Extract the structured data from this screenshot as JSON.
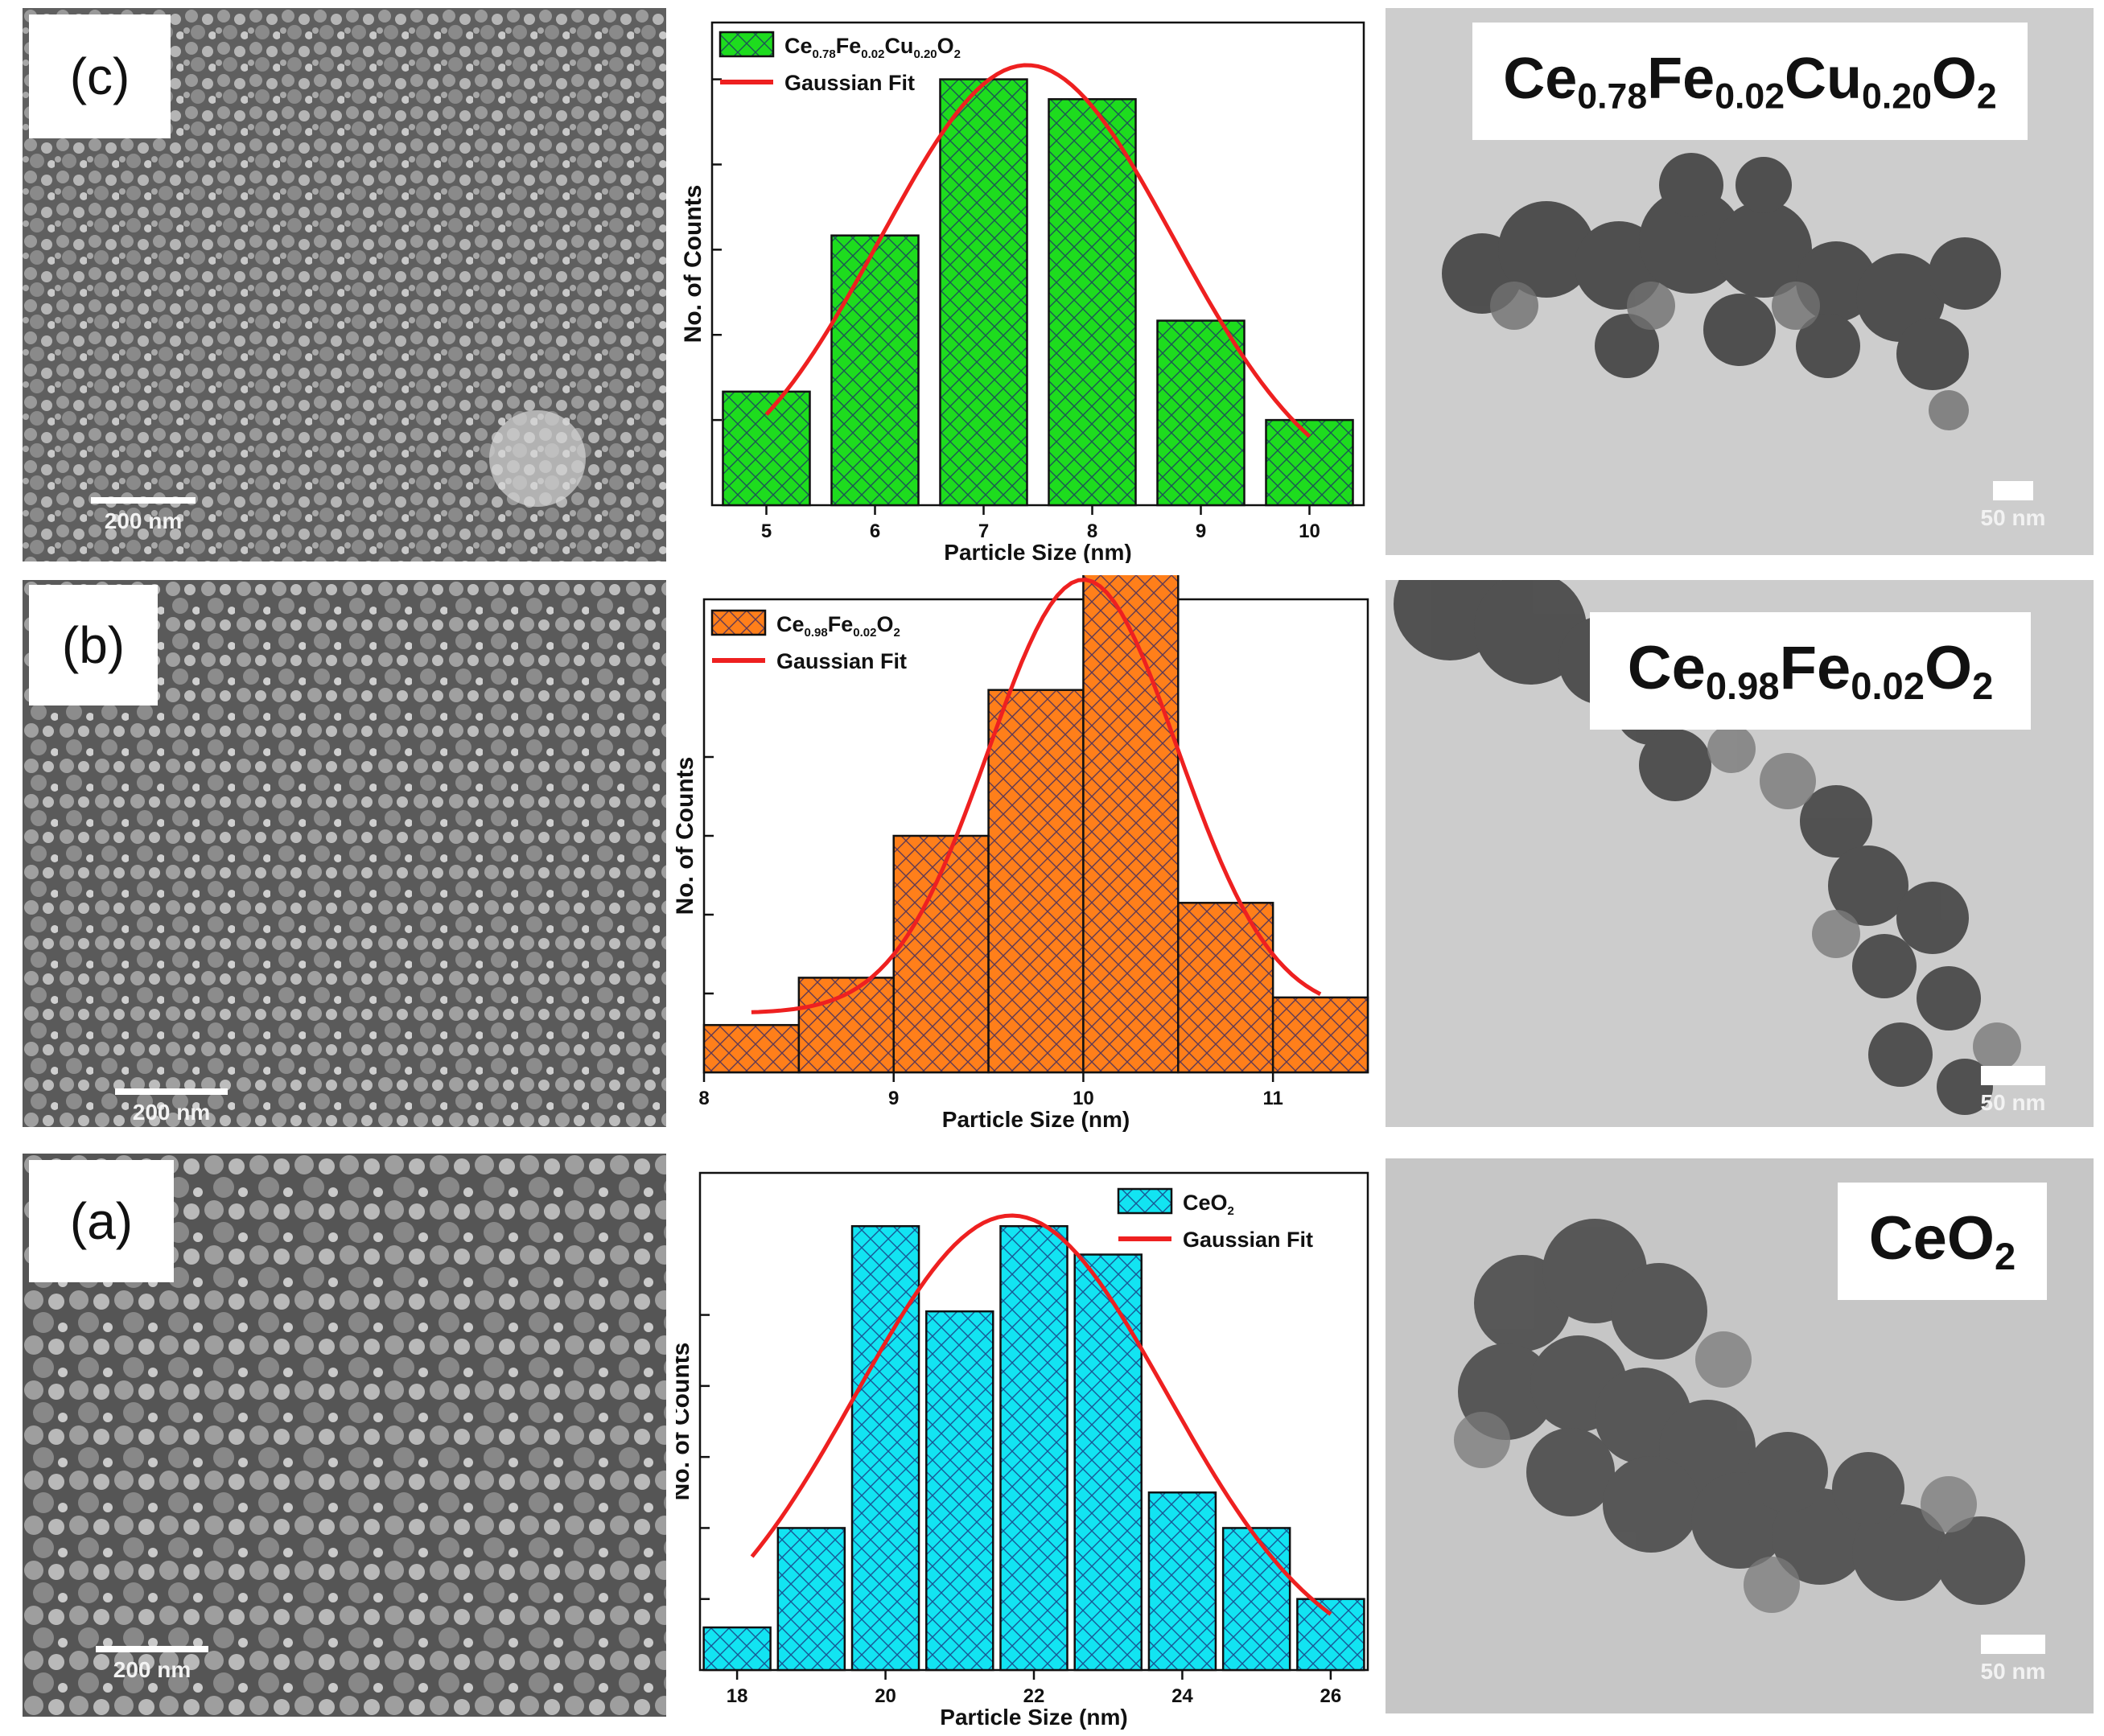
{
  "rows": [
    {
      "panel_label": "(c)",
      "sem_scale": "200 nm",
      "tem_scale": "50 nm",
      "tem_formula": {
        "parts": [
          [
            "Ce",
            ""
          ],
          [
            "0.78",
            "sub"
          ],
          [
            "Fe",
            ""
          ],
          [
            "0.02",
            "sub"
          ],
          [
            "Cu",
            ""
          ],
          [
            "0.20",
            "sub"
          ],
          [
            "O",
            ""
          ],
          [
            "2",
            "sub"
          ]
        ]
      }
    },
    {
      "panel_label": "(b)",
      "sem_scale": "200 nm",
      "tem_scale": "50 nm",
      "tem_formula": {
        "parts": [
          [
            "Ce",
            ""
          ],
          [
            "0.98",
            "sub"
          ],
          [
            "Fe",
            ""
          ],
          [
            "0.02",
            "sub"
          ],
          [
            "O",
            ""
          ],
          [
            "2",
            "sub"
          ]
        ]
      }
    },
    {
      "panel_label": "(a)",
      "sem_scale": "200 nm",
      "tem_scale": "50 nm",
      "tem_formula": {
        "parts": [
          [
            "Ce",
            ""
          ],
          [
            "O",
            ""
          ],
          [
            "2",
            "sub"
          ]
        ]
      }
    }
  ],
  "colors": {
    "green": "#1edc1e",
    "orange": "#ff7f1a",
    "cyan": "#12e4f2",
    "fit": "#ee2020",
    "hatch": "#1a1a6e"
  },
  "chart_data": [
    {
      "type": "bar",
      "xlabel": "Particle Size (nm)",
      "ylabel": "No. of Counts",
      "legend": {
        "placement": "top-left",
        "bar_parts": [
          [
            "Ce",
            ""
          ],
          [
            "0.78",
            "sub"
          ],
          [
            "Fe",
            ""
          ],
          [
            "0.02",
            "sub"
          ],
          [
            "Cu",
            ""
          ],
          [
            "0.20",
            "sub"
          ],
          [
            "O",
            ""
          ],
          [
            "2",
            "sub"
          ]
        ],
        "fit_label": "Gaussian Fit"
      },
      "xlim": [
        4.5,
        10.5
      ],
      "ylim": [
        0,
        17
      ],
      "yticks": [
        3,
        6,
        9,
        12,
        15
      ],
      "xticks": [
        5,
        6,
        7,
        8,
        9,
        10
      ],
      "bin_width": 0.8,
      "x": [
        5,
        6,
        7,
        8,
        9,
        10
      ],
      "values": [
        4,
        9.5,
        15,
        14.3,
        6.5,
        3
      ],
      "color": "green",
      "fit": {
        "mean": 7.4,
        "sigma": 1.35,
        "amp": 15.5,
        "from": 5,
        "to": 10
      }
    },
    {
      "type": "bar",
      "xlabel": "Particle Size (nm)",
      "ylabel": "No. of Counts",
      "legend": {
        "placement": "top-left",
        "bar_parts": [
          [
            "Ce",
            ""
          ],
          [
            "0.98",
            "sub"
          ],
          [
            "Fe",
            ""
          ],
          [
            "0.02",
            "sub"
          ],
          [
            "O",
            ""
          ],
          [
            "2",
            "sub"
          ]
        ],
        "fit_label": "Gaussian Fit"
      },
      "xlim": [
        8,
        11.5
      ],
      "ylim": [
        0,
        12
      ],
      "yticks": [
        2,
        4,
        6,
        8
      ],
      "xticks": [
        8,
        9,
        10,
        11
      ],
      "bin_width": 0.5,
      "x": [
        8.25,
        8.75,
        9.25,
        9.75,
        10.25,
        10.75,
        11.25
      ],
      "values": [
        1.2,
        2.4,
        6.0,
        9.7,
        12.7,
        4.3,
        1.9
      ],
      "color": "orange",
      "fit": {
        "mean": 10.0,
        "sigma": 0.5,
        "amp": 12.5,
        "base": 1.5,
        "from": 8.25,
        "to": 11.25
      }
    },
    {
      "type": "bar",
      "xlabel": "Particle Size (nm)",
      "ylabel": "No. of Counts",
      "legend": {
        "placement": "top-right",
        "bar_parts": [
          [
            "CeO",
            ""
          ],
          [
            "2",
            "sub"
          ]
        ],
        "fit_label": "Gaussian Fit"
      },
      "xlim": [
        17.5,
        26.5
      ],
      "ylim": [
        0,
        14
      ],
      "yticks": [
        2,
        4,
        6,
        8,
        10
      ],
      "xticks": [
        18,
        20,
        22,
        24,
        26
      ],
      "bin_width": 0.9,
      "x": [
        18,
        19,
        20,
        21,
        22,
        23,
        24,
        25,
        26
      ],
      "values": [
        1.2,
        4,
        12.5,
        10.1,
        12.5,
        11.7,
        5,
        4,
        2
      ],
      "color": "cyan",
      "fit": {
        "mean": 21.7,
        "sigma": 2.1,
        "amp": 12.8,
        "from": 18.2,
        "to": 26.0
      }
    }
  ]
}
